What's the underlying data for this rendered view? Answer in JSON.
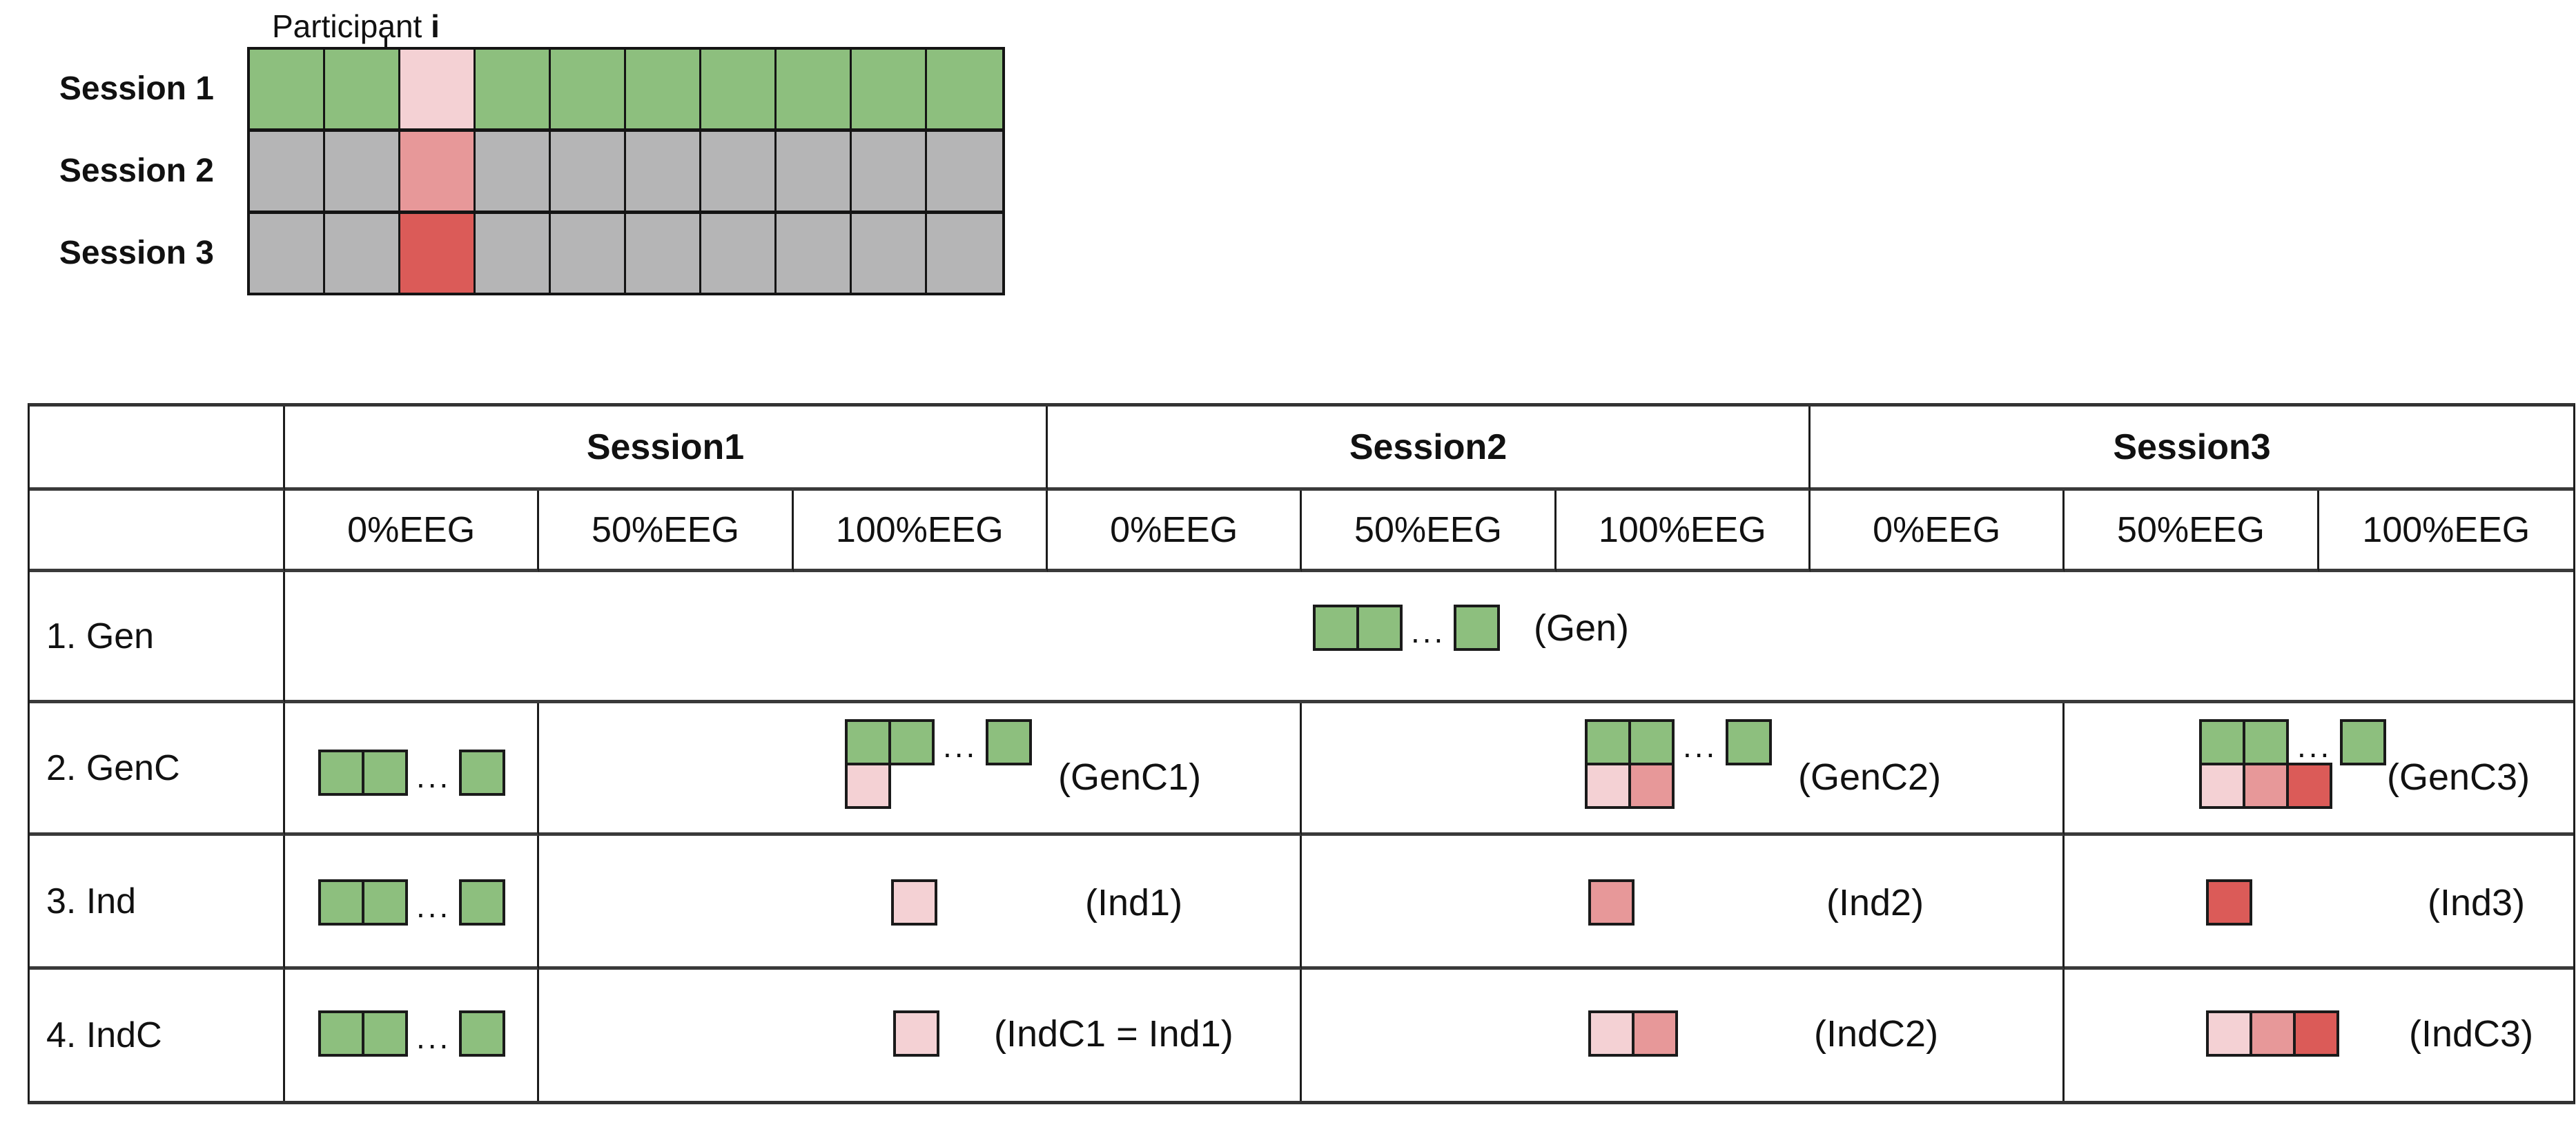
{
  "colors": {
    "green": "#8DBF7E",
    "pink": "#F4D1D4",
    "rose": "#E79899",
    "red": "#DB5B58",
    "gray": "#B5B5B6"
  },
  "ellipsis": "...",
  "top_diagram": {
    "participant_label": "Participant",
    "participant_index": "i",
    "rows": [
      {
        "label": "Session 1",
        "cells": [
          "green",
          "green",
          "pink",
          "green",
          "green",
          "green",
          "green",
          "green",
          "green",
          "green"
        ]
      },
      {
        "label": "Session 2",
        "cells": [
          "gray",
          "gray",
          "rose",
          "gray",
          "gray",
          "gray",
          "gray",
          "gray",
          "gray",
          "gray"
        ]
      },
      {
        "label": "Session 3",
        "cells": [
          "gray",
          "gray",
          "red",
          "gray",
          "gray",
          "gray",
          "gray",
          "gray",
          "gray",
          "gray"
        ]
      }
    ]
  },
  "table": {
    "session_headers": [
      "Session1",
      "Session2",
      "Session3"
    ],
    "sub_headers": [
      "0%EEG",
      "50%EEG",
      "100%EEG",
      "0%EEG",
      "50%EEG",
      "100%EEG",
      "0%EEG",
      "50%EEG",
      "100%EEG"
    ],
    "rows": [
      {
        "label": "1. Gen",
        "tag": "(Gen)"
      },
      {
        "label": "2. GenC",
        "tags": [
          "(GenC1)",
          "(GenC2)",
          "(GenC3)"
        ]
      },
      {
        "label": "3. Ind",
        "tags": [
          "(Ind1)",
          "(Ind2)",
          "(Ind3)"
        ]
      },
      {
        "label": "4. IndC",
        "tags": [
          "(IndC1 = Ind1)",
          "(IndC2)",
          "(IndC3)"
        ]
      }
    ]
  },
  "squares": {
    "green_row": [
      "green",
      "green",
      "dots",
      "green"
    ],
    "genc_bottom_1": [
      "pink"
    ],
    "genc_bottom_2": [
      "pink",
      "rose"
    ],
    "genc_bottom_3": [
      "pink",
      "rose",
      "red"
    ],
    "ind_1": [
      "pink"
    ],
    "ind_2": [
      "rose"
    ],
    "ind_3": [
      "red"
    ],
    "indc_1": [
      "pink"
    ],
    "indc_2": [
      "pink",
      "rose"
    ],
    "indc_3": [
      "pink",
      "rose",
      "red"
    ]
  }
}
